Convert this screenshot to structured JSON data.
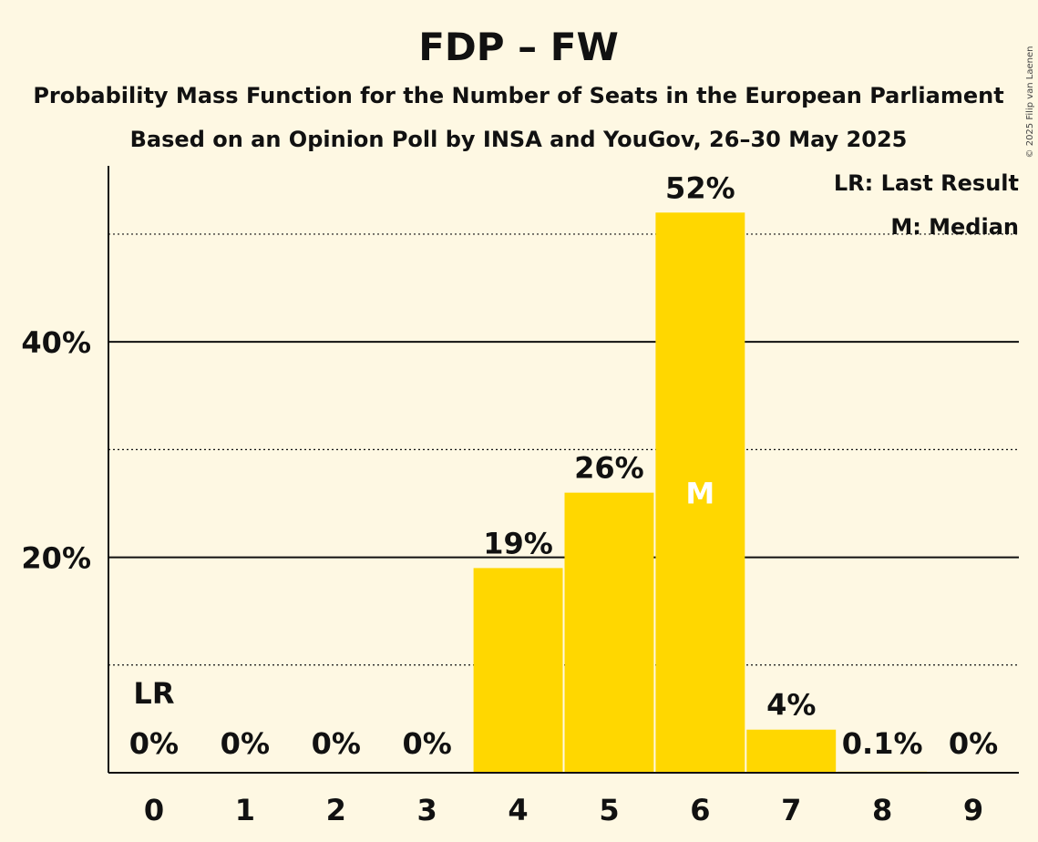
{
  "chart_data": {
    "type": "bar",
    "title": "FDP – FW",
    "subtitle": "Probability Mass Function for the Number of Seats in the European Parliament",
    "subtitle2": "Based on an Opinion Poll by INSA and YouGov, 26–30 May 2025",
    "categories": [
      "0",
      "1",
      "2",
      "3",
      "4",
      "5",
      "6",
      "7",
      "8",
      "9"
    ],
    "values": [
      0,
      0,
      0,
      0,
      19,
      26,
      52,
      4,
      0.1,
      0
    ],
    "value_labels": [
      "0%",
      "0%",
      "0%",
      "0%",
      "19%",
      "26%",
      "52%",
      "4%",
      "0.1%",
      "0%"
    ],
    "ylim": [
      0,
      56
    ],
    "ytick_values": [
      20,
      40
    ],
    "ytick_labels": [
      "20%",
      "40%"
    ],
    "minor_gridlines": [
      10,
      30,
      50
    ],
    "bar_color": "#ffd700",
    "last_result_index": 0,
    "last_result_marker": "LR",
    "median_index": 6,
    "median_marker": "M",
    "legend": [
      "LR: Last Result",
      "M: Median"
    ],
    "legend_position": "top-right"
  },
  "copyright": "© 2025 Filip van Laenen"
}
